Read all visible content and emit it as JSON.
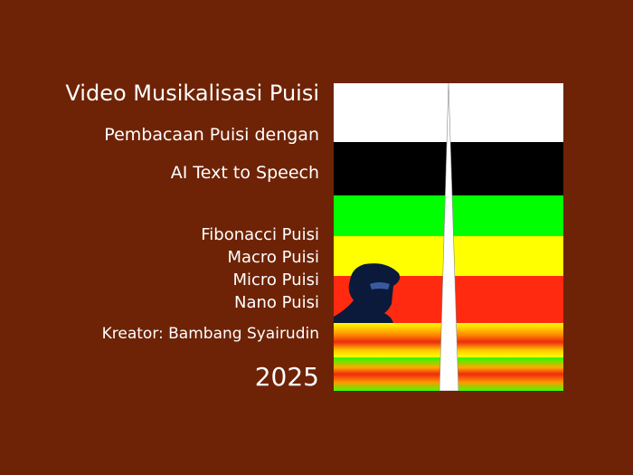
{
  "title": "Video Musikalisasi Puisi",
  "subtitle_lines": [
    "Pembacaan Puisi dengan",
    "AI Text to Speech"
  ],
  "forms": [
    "Fibonacci Puisi",
    "Macro Puisi",
    "Micro Puisi",
    "Nano Puisi"
  ],
  "creator": "Kreator: Bambang Syairudin",
  "year": "2025",
  "colors": {
    "background": "#6e2306",
    "bands": [
      "#ffffff",
      "#000000",
      "#00ff00",
      "#ffff00",
      "#ff2a10"
    ]
  }
}
